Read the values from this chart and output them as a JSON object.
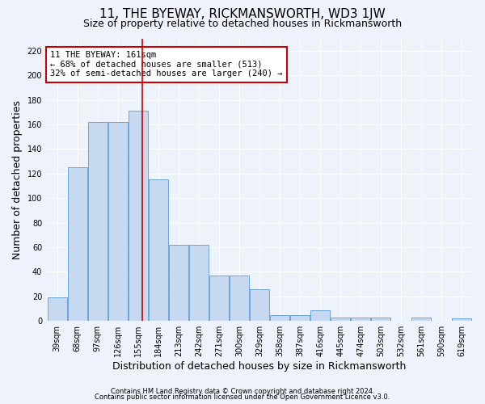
{
  "title": "11, THE BYEWAY, RICKMANSWORTH, WD3 1JW",
  "subtitle": "Size of property relative to detached houses in Rickmansworth",
  "xlabel": "Distribution of detached houses by size in Rickmansworth",
  "ylabel": "Number of detached properties",
  "categories": [
    "39sqm",
    "68sqm",
    "97sqm",
    "126sqm",
    "155sqm",
    "184sqm",
    "213sqm",
    "242sqm",
    "271sqm",
    "300sqm",
    "329sqm",
    "358sqm",
    "387sqm",
    "416sqm",
    "445sqm",
    "474sqm",
    "503sqm",
    "532sqm",
    "561sqm",
    "590sqm",
    "619sqm"
  ],
  "bar_values": [
    19,
    125,
    162,
    162,
    171,
    115,
    62,
    62,
    37,
    37,
    26,
    5,
    5,
    9,
    3,
    3,
    3,
    0,
    3,
    0,
    2
  ],
  "bar_color": "#c6d9f0",
  "bar_edge_color": "#5b9bd5",
  "vline_color": "#cc0000",
  "vline_position": 4.21,
  "annotation_text": "11 THE BYEWAY: 161sqm\n← 68% of detached houses are smaller (513)\n32% of semi-detached houses are larger (240) →",
  "annotation_box_color": "#ffffff",
  "annotation_box_edge": "#cc0000",
  "ylim": [
    0,
    230
  ],
  "yticks": [
    0,
    20,
    40,
    60,
    80,
    100,
    120,
    140,
    160,
    180,
    200,
    220
  ],
  "footer1": "Contains HM Land Registry data © Crown copyright and database right 2024.",
  "footer2": "Contains public sector information licensed under the Open Government Licence v3.0.",
  "background_color": "#eef2fa",
  "grid_color": "#ffffff",
  "title_fontsize": 11,
  "subtitle_fontsize": 9,
  "axis_label_fontsize": 9,
  "footer_fontsize": 6,
  "tick_fontsize": 7,
  "ylabel_fontsize": 9
}
